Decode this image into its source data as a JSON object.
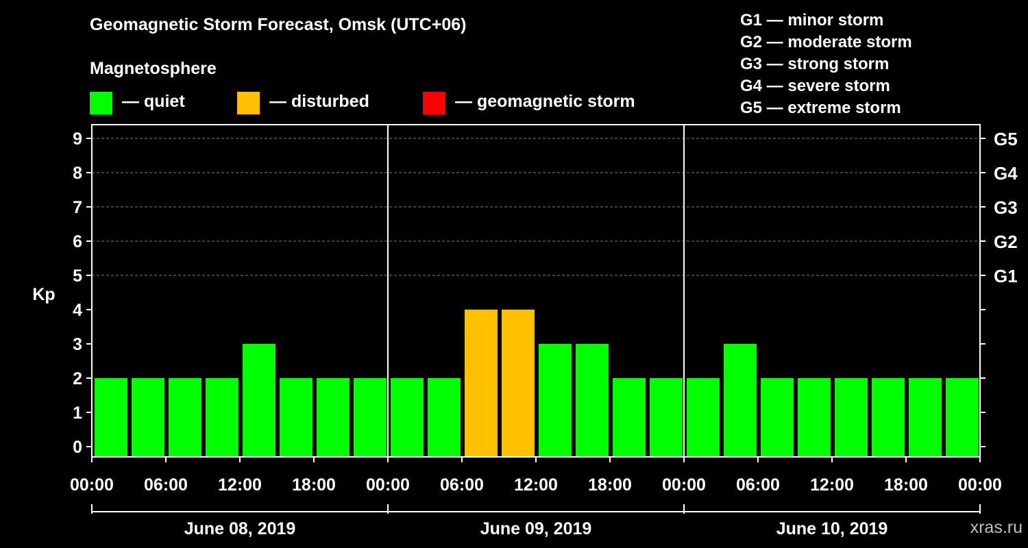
{
  "title": "Geomagnetic Storm Forecast, Omsk (UTC+06)",
  "section_label": "Magnetosphere",
  "legend": [
    {
      "key": "quiet",
      "label": "— quiet",
      "color": "#00ff00"
    },
    {
      "key": "disturbed",
      "label": "— disturbed",
      "color": "#ffc000"
    },
    {
      "key": "storm",
      "label": "— geomagnetic storm",
      "color": "#ff0000"
    }
  ],
  "g_legend": [
    "G1 — minor storm",
    "G2 — moderate storm",
    "G3 — strong storm",
    "G4 — severe storm",
    "G5 — extreme storm"
  ],
  "credit": "xras.ru",
  "chart_data": {
    "type": "bar",
    "ylabel": "Kp",
    "ylim": [
      0,
      9
    ],
    "yticks": [
      0,
      1,
      2,
      3,
      4,
      5,
      6,
      7,
      8,
      9
    ],
    "right_axis_labels": [
      {
        "kp": 5,
        "label": "G1"
      },
      {
        "kp": 6,
        "label": "G2"
      },
      {
        "kp": 7,
        "label": "G3"
      },
      {
        "kp": 8,
        "label": "G4"
      },
      {
        "kp": 9,
        "label": "G5"
      }
    ],
    "grid": true,
    "days": [
      "June 08, 2019",
      "June 09, 2019",
      "June 10, 2019"
    ],
    "xticks": [
      "00:00",
      "06:00",
      "12:00",
      "18:00",
      "00:00",
      "06:00",
      "12:00",
      "18:00",
      "00:00",
      "06:00",
      "12:00",
      "18:00",
      "00:00"
    ],
    "interval_hours": 3,
    "values": [
      2,
      2,
      2,
      2,
      3,
      2,
      2,
      2,
      2,
      2,
      4,
      4,
      3,
      3,
      2,
      2,
      2,
      3,
      2,
      2,
      2,
      2,
      2,
      2
    ],
    "status": [
      "quiet",
      "quiet",
      "quiet",
      "quiet",
      "quiet",
      "quiet",
      "quiet",
      "quiet",
      "quiet",
      "quiet",
      "disturbed",
      "disturbed",
      "quiet",
      "quiet",
      "quiet",
      "quiet",
      "quiet",
      "quiet",
      "quiet",
      "quiet",
      "quiet",
      "quiet",
      "quiet",
      "quiet"
    ]
  }
}
